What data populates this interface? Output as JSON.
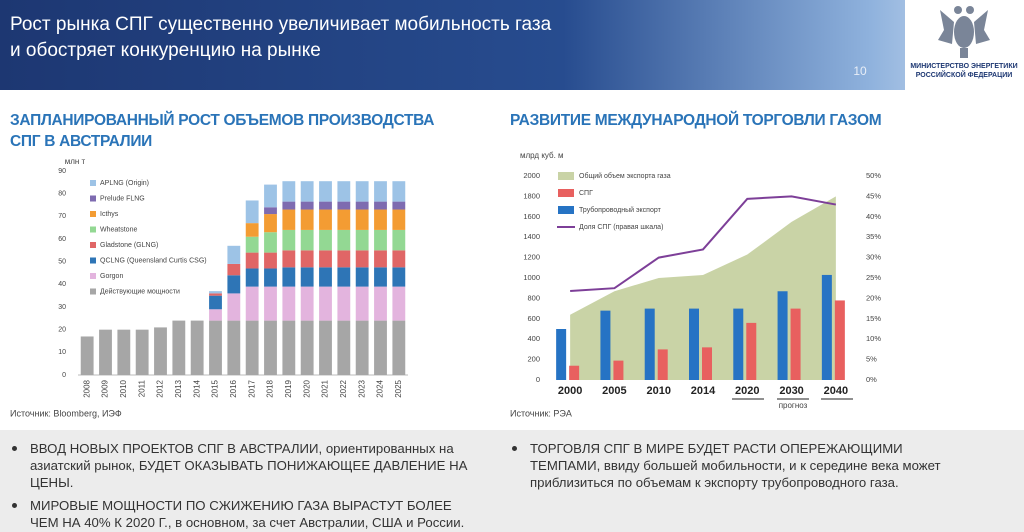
{
  "header": {
    "title": [
      "Рост рынка СПГ существенно увеличивает мобильность газа",
      "и обостряет конкуренцию на рынке"
    ],
    "page_number": "10",
    "ministry": [
      "МИНИСТЕРСТВО ЭНЕРГЕТИКИ",
      "РОССИЙСКОЙ ФЕДЕРАЦИИ"
    ]
  },
  "chart_data": [
    {
      "type": "bar",
      "stacked": true,
      "title": "ЗАПЛАНИРОВАННЫЙ РОСТ ОБЪЕМОВ ПРОИЗВОДСТВА СПГ В АВСТРАЛИИ",
      "y_label": "млн т",
      "source": "Источник: Bloomberg, ИЭФ",
      "categories": [
        "2008",
        "2009",
        "2010",
        "2011",
        "2012",
        "2013",
        "2014",
        "2015",
        "2016",
        "2017",
        "2018",
        "2019",
        "2020",
        "2021",
        "2022",
        "2023",
        "2024",
        "2025"
      ],
      "ylim": [
        0,
        90
      ],
      "yticks": [
        0,
        10,
        20,
        30,
        40,
        50,
        60,
        70,
        80,
        90
      ],
      "series": [
        {
          "name": "Действующие мощности",
          "color": "#a6a6a6",
          "values": [
            17,
            20,
            20,
            20,
            21,
            24,
            24,
            24,
            24,
            24,
            24,
            24,
            24,
            24,
            24,
            24,
            24,
            24
          ]
        },
        {
          "name": "Gorgon",
          "color": "#e3b4de",
          "values": [
            0,
            0,
            0,
            0,
            0,
            0,
            0,
            5,
            12,
            15,
            15,
            15,
            15,
            15,
            15,
            15,
            15,
            15
          ]
        },
        {
          "name": "QCLNG (Queensland Curtis CSG)",
          "color": "#2e75b6",
          "values": [
            0,
            0,
            0,
            0,
            0,
            0,
            0,
            6,
            8,
            8,
            8,
            8.5,
            8.5,
            8.5,
            8.5,
            8.5,
            8.5,
            8.5
          ]
        },
        {
          "name": "Gladstone (GLNG)",
          "color": "#e06666",
          "values": [
            0,
            0,
            0,
            0,
            0,
            0,
            0,
            1,
            5,
            7,
            7,
            7.5,
            7.5,
            7.5,
            7.5,
            7.5,
            7.5,
            7.5
          ]
        },
        {
          "name": "Wheatstone",
          "color": "#93d893",
          "values": [
            0,
            0,
            0,
            0,
            0,
            0,
            0,
            0,
            0,
            7,
            9,
            9,
            9,
            9,
            9,
            9,
            9,
            9
          ]
        },
        {
          "name": "Icthys",
          "color": "#f39c33",
          "values": [
            0,
            0,
            0,
            0,
            0,
            0,
            0,
            0,
            0,
            6,
            8,
            9,
            9,
            9,
            9,
            9,
            9,
            9
          ]
        },
        {
          "name": "Prelude FLNG",
          "color": "#7e6bb0",
          "values": [
            0,
            0,
            0,
            0,
            0,
            0,
            0,
            0,
            0,
            0,
            3,
            3.5,
            3.5,
            3.5,
            3.5,
            3.5,
            3.5,
            3.5
          ]
        },
        {
          "name": "APLNG (Origin)",
          "color": "#9dc3e6",
          "values": [
            0,
            0,
            0,
            0,
            0,
            0,
            0,
            1,
            8,
            10,
            10,
            9,
            9,
            9,
            9,
            9,
            9,
            9
          ]
        }
      ]
    },
    {
      "type": "combo",
      "title": "РАЗВИТИЕ МЕЖДУНАРОДНОЙ ТОРГОВЛИ ГАЗОМ",
      "y_label": "млрд куб. м",
      "source": "Источник: РЭА",
      "annotation": "прогноз",
      "categories": [
        "2000",
        "2005",
        "2010",
        "2014",
        "2020",
        "2030",
        "2040"
      ],
      "ylim": [
        0,
        2000
      ],
      "yticks": [
        0,
        200,
        400,
        600,
        800,
        1000,
        1200,
        1400,
        1600,
        1800,
        2000
      ],
      "y2lim": [
        0,
        50
      ],
      "y2ticks": [
        {
          "value": 0,
          "label": "0%"
        },
        {
          "value": 5,
          "label": "5%"
        },
        {
          "value": 10,
          "label": "10%"
        },
        {
          "value": 15,
          "label": "15%"
        },
        {
          "value": 20,
          "label": "20%"
        },
        {
          "value": 25,
          "label": "25%"
        },
        {
          "value": 30,
          "label": "30%"
        },
        {
          "value": 35,
          "label": "35%"
        },
        {
          "value": 40,
          "label": "40%"
        },
        {
          "value": 45,
          "label": "45%"
        },
        {
          "value": 50,
          "label": "50%"
        }
      ],
      "series": [
        {
          "name": "Общий объем экспорта газа",
          "type": "area",
          "color": "#c9d3a6",
          "values": [
            640,
            870,
            1000,
            1030,
            1230,
            1550,
            1800
          ]
        },
        {
          "name": "СПГ",
          "type": "bar",
          "color": "#e8605f",
          "values": [
            140,
            190,
            300,
            320,
            560,
            700,
            780
          ]
        },
        {
          "name": "Трубопроводный экспорт",
          "type": "bar",
          "color": "#2673c4",
          "values": [
            500,
            680,
            700,
            700,
            700,
            870,
            1030
          ]
        },
        {
          "name": "Доля СПГ (правая шкала)",
          "type": "line",
          "axis": "y2",
          "color": "#7d3f98",
          "values": [
            21.8,
            22.5,
            30,
            32,
            44.4,
            45,
            43
          ]
        }
      ]
    }
  ],
  "bullets": {
    "left": [
      "ВВОД НОВЫХ ПРОЕКТОВ СПГ В АВСТРАЛИИ, ориентированных на азиатский рынок, БУДЕТ ОКАЗЫВАТЬ ПОНИЖАЮЩЕЕ ДАВЛЕНИЕ НА ЦЕНЫ.",
      "МИРОВЫЕ МОЩНОСТИ ПО СЖИЖЕНИЮ ГАЗА ВЫРАСТУТ БОЛЕЕ ЧЕМ НА 40% К 2020 Г., в основном, за счет Австралии, США и России."
    ],
    "right": [
      "ТОРГОВЛЯ СПГ В МИРЕ БУДЕТ РАСТИ ОПЕРЕЖАЮЩИМИ ТЕМПАМИ, ввиду большей мобильности, и к середине века может приблизиться по объемам к экспорту трубопроводного газа."
    ]
  }
}
